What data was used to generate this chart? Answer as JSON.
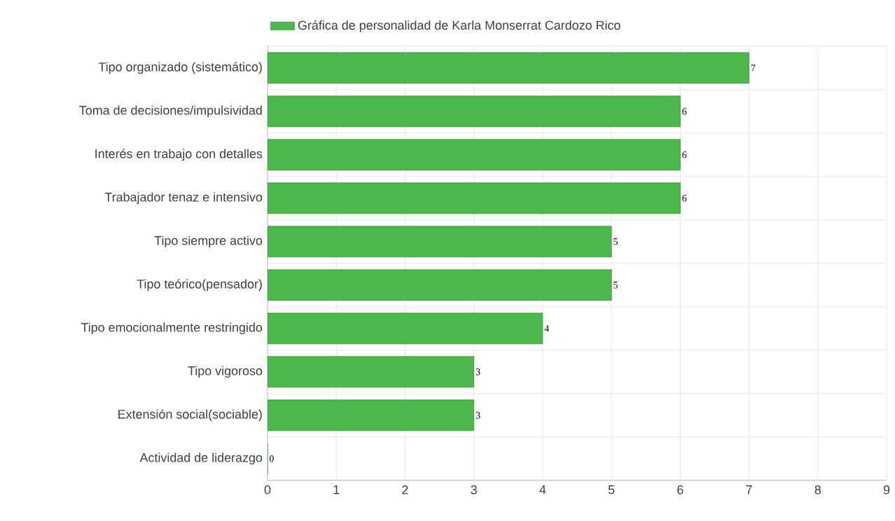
{
  "chart_data": {
    "type": "bar",
    "orientation": "horizontal",
    "categories": [
      "Tipo organizado (sistemático)",
      "Toma de decisiones/impulsividad",
      "Interés en trabajo con detalles",
      "Trabajador tenaz e intensivo",
      "Tipo siempre activo",
      "Tipo teórico(pensador)",
      "Tipo emocionalmente restringido",
      "Tipo vigoroso",
      "Extensión social(sociable)",
      "Actividad de liderazgo"
    ],
    "series": [
      {
        "name": "Gráfica de personalidad de Karla Monserrat Cardozo Rico",
        "color": "#4cb84c",
        "values": [
          7,
          6,
          6,
          6,
          5,
          5,
          4,
          3,
          3,
          0
        ]
      }
    ],
    "xlim": [
      0,
      9
    ],
    "xticks": [
      0,
      1,
      2,
      3,
      4,
      5,
      6,
      7,
      8,
      9
    ],
    "data_labels": true,
    "grid": true,
    "legend": "top"
  }
}
